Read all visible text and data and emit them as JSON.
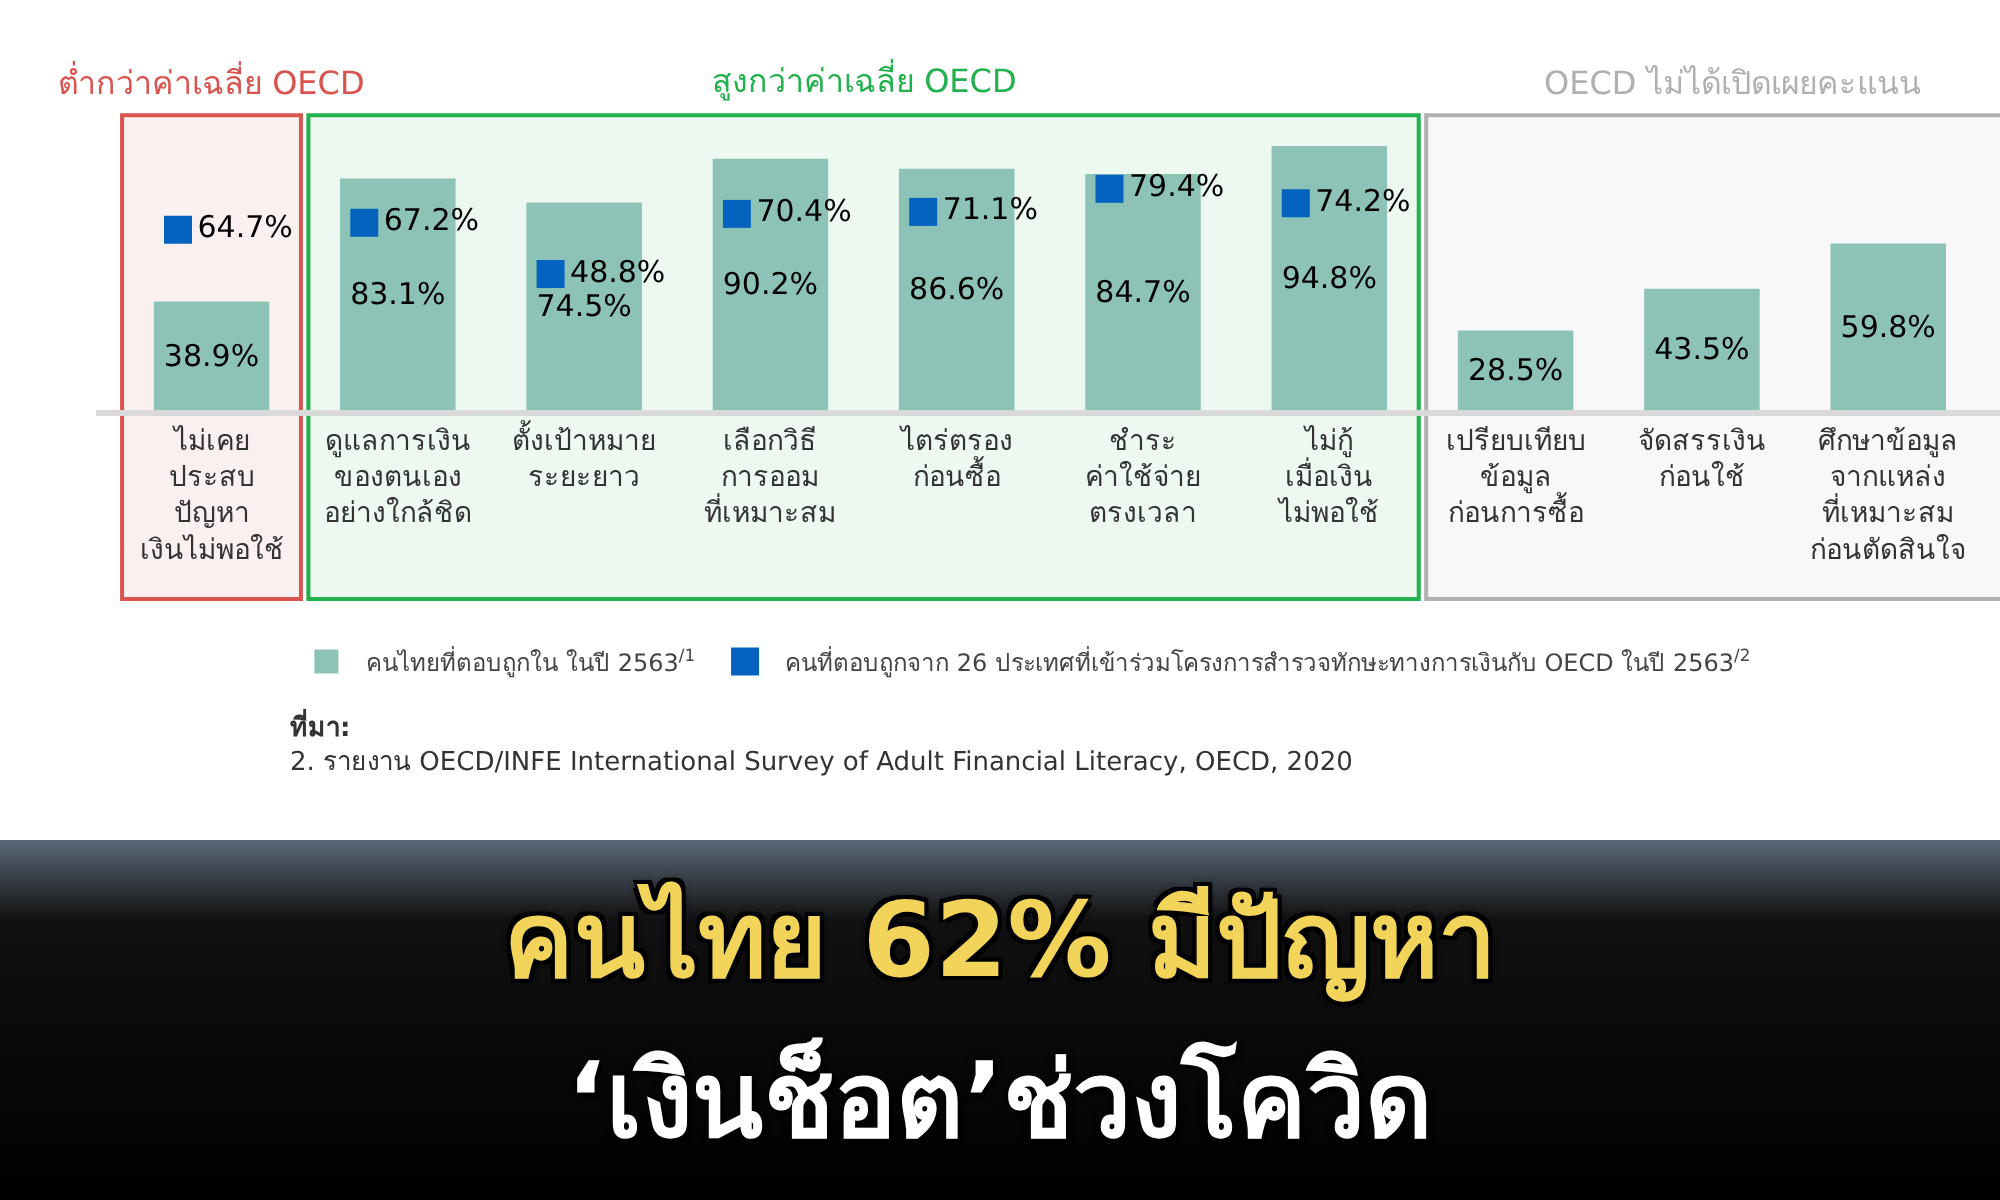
{
  "chart_data": {
    "type": "bar",
    "title": "คนไทย 62% มีปัญหา",
    "subtitle": "‘เงินช็อต’ช่วงโควิด",
    "categories": [
      "ไม่เคย\nประสบ\nปัญหา\nเงินไม่พอใช้",
      "ดูแลการเงิน\nของตนเอง\nอย่างใกล้ชิด",
      "ตั้งเป้าหมาย\nระยะยาว",
      "เลือกวิธี\nการออม\nที่เหมาะสม",
      "ไตร่ตรอง\nก่อนซื้อ",
      "ชำระ\nค่าใช้จ่าย\nตรงเวลา",
      "ไม่กู้\nเมื่อเงิน\nไม่พอใช้",
      "เปรียบเทียบ\nข้อมูล\nก่อนการซื้อ",
      "จัดสรรเงิน\nก่อนใช้",
      "ศึกษาข้อมูล\nจากแหล่ง\nที่เหมาะสม\nก่อนตัดสินใจ"
    ],
    "series": [
      {
        "type": "bar",
        "name": "คนไทยที่ตอบถูกใน ในปี 2563$^{/1}$",
        "color": "#8cc3b6",
        "values": [
          38.9,
          83.1,
          74.5,
          90.2,
          86.6,
          84.7,
          94.8,
          28.5,
          43.5,
          59.8
        ],
        "value_labels": [
          "38.9%",
          "83.1%",
          "74.5%",
          "90.2%",
          "86.6%",
          "84.7%",
          "94.8%",
          "28.5%",
          "43.5%",
          "59.8%"
        ]
      },
      {
        "type": "scatter",
        "name": "คนที่ตอบถูกจาก 26 ประเทศที่เข้าร่วมโครงการสำรวจทักษะทางการเงินกับ OECD ในปี 2563$^{/2}$",
        "color": "#0563c0",
        "marker": "square",
        "values": [
          64.7,
          67.2,
          48.8,
          70.4,
          71.1,
          79.4,
          74.2,
          null,
          null,
          null
        ],
        "value_labels": [
          "64.7%",
          "67.2%",
          "48.8%",
          "70.4%",
          "71.1%",
          "79.4%",
          "74.2%",
          null,
          null,
          null
        ]
      }
    ],
    "bands": [
      {
        "axis": "x",
        "from": "ไม่เคย\nประสบ\nปัญหา\nเงินไม่พอใช้",
        "to": "ไม่เคย\nประสบ\nปัญหา\nเงินไม่พอใช้",
        "label": "ต่ำกว่าค่าเฉลี่ย OECD",
        "color": "#d9534f"
      },
      {
        "axis": "x",
        "from": "ดูแลการเงิน\nของตนเอง\nอย่างใกล้ชิด",
        "to": "ไม่กู้\nเมื่อเงิน\nไม่พอใช้",
        "label": "สูงกว่าค่าเฉลี่ย OECD",
        "color": "#22b14c"
      },
      {
        "axis": "x",
        "from": "เปรียบเทียบ\nข้อมูล\nก่อนการซื้อ",
        "to": "ศึกษาข้อมูล\nจากแหล่ง\nที่เหมาะสม\nก่อนตัดสินใจ",
        "label": "OECD ไม่ได้เปิดเผยคะแนน",
        "color": "#b0b0b0"
      }
    ],
    "legend": "bottom",
    "grid": false,
    "annotations": [
      "ที่มา:",
      "2. รายงาน OECD/INFE International Survey of Adult Financial Literacy, OECD, 2020"
    ]
  }
}
